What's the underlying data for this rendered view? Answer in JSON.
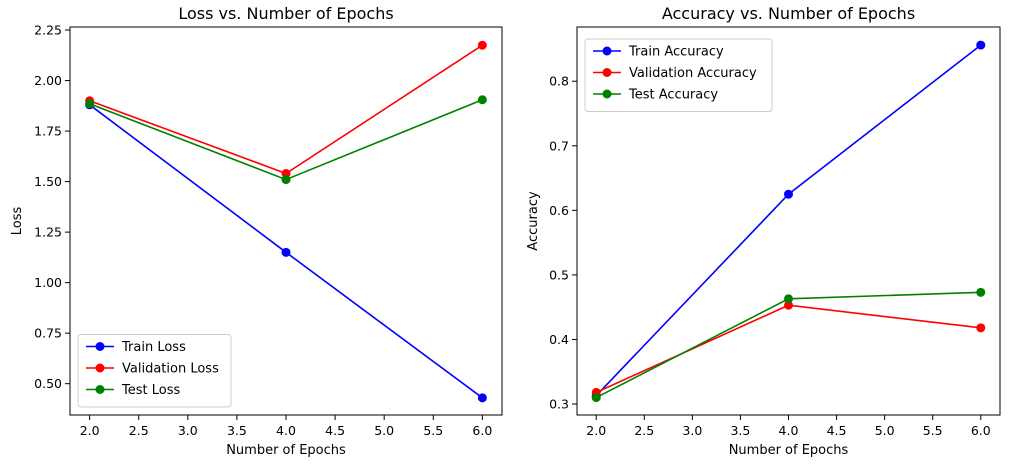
{
  "chart_data": [
    {
      "type": "line",
      "title": "Loss vs. Number of Epochs",
      "xlabel": "Number of Epochs",
      "ylabel": "Loss",
      "x": [
        2,
        4,
        6
      ],
      "xlim": [
        1.8,
        6.2
      ],
      "ylim": [
        0.345,
        2.265
      ],
      "xticks": [
        "2.0",
        "2.5",
        "3.0",
        "3.5",
        "4.0",
        "4.5",
        "5.0",
        "5.5",
        "6.0"
      ],
      "yticks": [
        "0.50",
        "0.75",
        "1.00",
        "1.25",
        "1.50",
        "1.75",
        "2.00",
        "2.25"
      ],
      "legend": "lower-left",
      "grid": false,
      "series": [
        {
          "name": "Train Loss",
          "color": "#0000ff",
          "values": [
            1.88,
            1.15,
            0.43
          ]
        },
        {
          "name": "Validation Loss",
          "color": "#ff0000",
          "values": [
            1.9,
            1.54,
            2.175
          ]
        },
        {
          "name": "Test Loss",
          "color": "#008000",
          "values": [
            1.885,
            1.51,
            1.905
          ]
        }
      ]
    },
    {
      "type": "line",
      "title": "Accuracy vs. Number of Epochs",
      "xlabel": "Number of Epochs",
      "ylabel": "Accuracy",
      "x": [
        2,
        4,
        6
      ],
      "xlim": [
        1.8,
        6.2
      ],
      "ylim": [
        0.283,
        0.884
      ],
      "xticks": [
        "2.0",
        "2.5",
        "3.0",
        "3.5",
        "4.0",
        "4.5",
        "5.0",
        "5.5",
        "6.0"
      ],
      "yticks": [
        "0.3",
        "0.4",
        "0.5",
        "0.6",
        "0.7",
        "0.8"
      ],
      "legend": "upper-left",
      "grid": false,
      "series": [
        {
          "name": "Train Accuracy",
          "color": "#0000ff",
          "values": [
            0.313,
            0.625,
            0.856
          ]
        },
        {
          "name": "Validation Accuracy",
          "color": "#ff0000",
          "values": [
            0.318,
            0.453,
            0.418
          ]
        },
        {
          "name": "Test Accuracy",
          "color": "#008000",
          "values": [
            0.31,
            0.463,
            0.473
          ]
        }
      ]
    }
  ]
}
